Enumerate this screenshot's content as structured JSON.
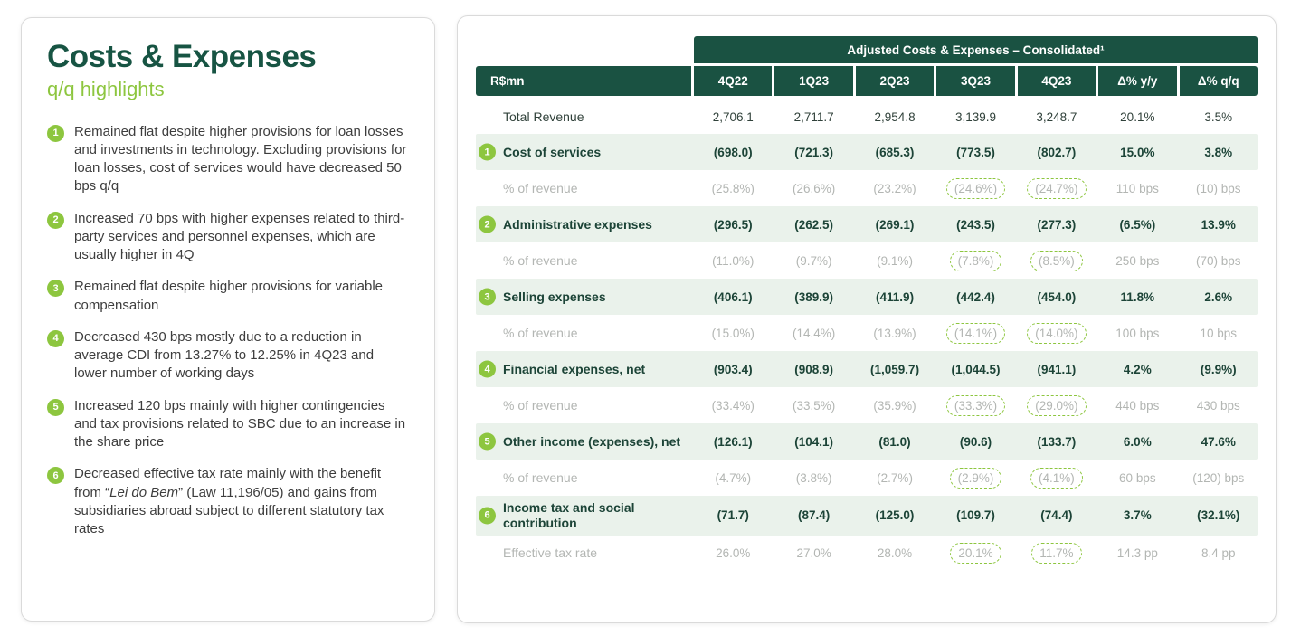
{
  "accent_colors": {
    "dark_green": "#1a5242",
    "lime_green": "#8dc63f",
    "highlight_row_bg": "#eaf2eb",
    "muted_gray": "#b3b6b3"
  },
  "left_panel": {
    "title": "Costs & Expenses",
    "subtitle": "q/q highlights",
    "bullets": [
      {
        "num": "1",
        "segments": [
          {
            "t": "Remained flat despite higher provisions for loan losses and investments in technology. Excluding provisions for loan losses, cost of services would have decreased 50 bps q/q"
          }
        ]
      },
      {
        "num": "2",
        "segments": [
          {
            "t": "Increased 70 bps with higher expenses related to third-party services and personnel expenses, which are usually higher in 4Q"
          }
        ]
      },
      {
        "num": "3",
        "segments": [
          {
            "t": "Remained flat despite higher provisions for variable compensation"
          }
        ]
      },
      {
        "num": "4",
        "segments": [
          {
            "t": "Decreased 430 bps mostly due to a reduction in average CDI from 13.27% to 12.25% in 4Q23 and lower number of working days"
          }
        ]
      },
      {
        "num": "5",
        "segments": [
          {
            "t": "Increased 120 bps mainly with higher contingencies and tax provisions related to SBC due to an increase in the share price"
          }
        ]
      },
      {
        "num": "6",
        "segments": [
          {
            "t": "Decreased effective tax rate mainly with the benefit from “"
          },
          {
            "t": "Lei do Bem",
            "i": true
          },
          {
            "t": "” (Law 11,196/05) and gains from subsidiaries abroad subject to different statutory tax rates"
          }
        ]
      }
    ]
  },
  "table": {
    "band_title": "Adjusted Costs & Expenses – Consolidated¹",
    "columns": [
      "R$mn",
      "4Q22",
      "1Q23",
      "2Q23",
      "3Q23",
      "4Q23",
      "Δ% y/y",
      "Δ% q/q"
    ],
    "rows": [
      {
        "type": "plain",
        "label": "Total Revenue",
        "values": [
          "2,706.1",
          "2,711.7",
          "2,954.8",
          "3,139.9",
          "3,248.7",
          "20.1%",
          "3.5%"
        ]
      },
      {
        "type": "main",
        "num": "1",
        "label": "Cost of services",
        "values": [
          "(698.0)",
          "(721.3)",
          "(685.3)",
          "(773.5)",
          "(802.7)",
          "15.0%",
          "3.8%"
        ]
      },
      {
        "type": "sub",
        "label": "% of revenue",
        "values": [
          "(25.8%)",
          "(26.6%)",
          "(23.2%)",
          "(24.6%)",
          "(24.7%)",
          "110 bps",
          "(10) bps"
        ]
      },
      {
        "type": "main",
        "num": "2",
        "label": "Administrative expenses",
        "values": [
          "(296.5)",
          "(262.5)",
          "(269.1)",
          "(243.5)",
          "(277.3)",
          "(6.5%)",
          "13.9%"
        ]
      },
      {
        "type": "sub",
        "label": "% of revenue",
        "values": [
          "(11.0%)",
          "(9.7%)",
          "(9.1%)",
          "(7.8%)",
          "(8.5%)",
          "250 bps",
          "(70) bps"
        ]
      },
      {
        "type": "main",
        "num": "3",
        "label": "Selling expenses",
        "values": [
          "(406.1)",
          "(389.9)",
          "(411.9)",
          "(442.4)",
          "(454.0)",
          "11.8%",
          "2.6%"
        ]
      },
      {
        "type": "sub",
        "label": "% of revenue",
        "values": [
          "(15.0%)",
          "(14.4%)",
          "(13.9%)",
          "(14.1%)",
          "(14.0%)",
          "100 bps",
          "10 bps"
        ]
      },
      {
        "type": "main",
        "num": "4",
        "label": "Financial expenses, net",
        "values": [
          "(903.4)",
          "(908.9)",
          "(1,059.7)",
          "(1,044.5)",
          "(941.1)",
          "4.2%",
          "(9.9%)"
        ]
      },
      {
        "type": "sub",
        "label": "% of revenue",
        "values": [
          "(33.4%)",
          "(33.5%)",
          "(35.9%)",
          "(33.3%)",
          "(29.0%)",
          "440 bps",
          "430 bps"
        ]
      },
      {
        "type": "main",
        "num": "5",
        "label": "Other income (expenses), net",
        "values": [
          "(126.1)",
          "(104.1)",
          "(81.0)",
          "(90.6)",
          "(133.7)",
          "6.0%",
          "47.6%"
        ]
      },
      {
        "type": "sub",
        "label": "% of revenue",
        "values": [
          "(4.7%)",
          "(3.8%)",
          "(2.7%)",
          "(2.9%)",
          "(4.1%)",
          "60 bps",
          "(120) bps"
        ]
      },
      {
        "type": "main",
        "num": "6",
        "label": "Income tax and social contribution",
        "values": [
          "(71.7)",
          "(87.4)",
          "(125.0)",
          "(109.7)",
          "(74.4)",
          "3.7%",
          "(32.1%)"
        ]
      },
      {
        "type": "sub",
        "label": "Effective tax rate",
        "values": [
          "26.0%",
          "27.0%",
          "28.0%",
          "20.1%",
          "11.7%",
          "14.3 pp",
          "8.4 pp"
        ]
      }
    ],
    "circled_value_indices": [
      3,
      4
    ]
  }
}
